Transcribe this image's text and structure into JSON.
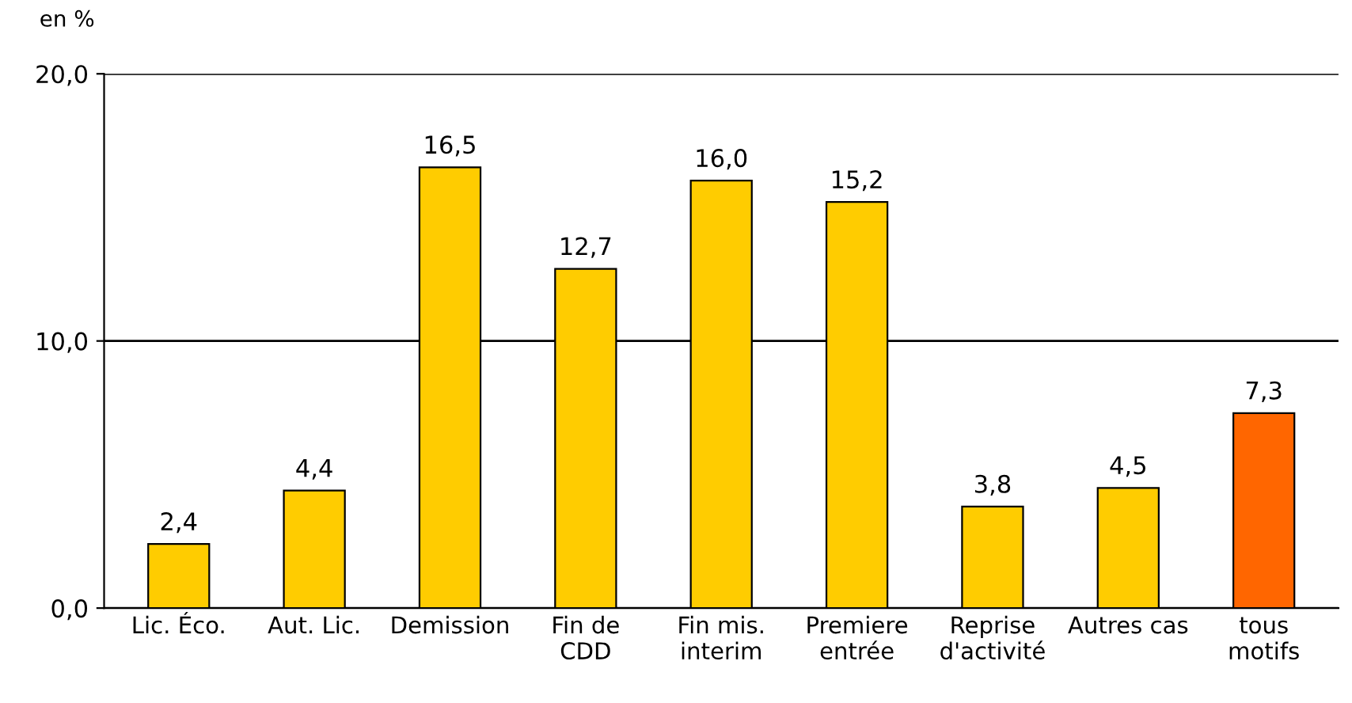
{
  "chart_data": {
    "type": "bar",
    "ylabel": "en %",
    "categories": [
      "Lic. Éco.",
      "Aut. Lic.",
      "Demission",
      "Fin de\nCDD",
      "Fin mis.\ninterim",
      "Premiere\nentrée",
      "Reprise\nd'activité",
      "Autres cas",
      "tous\nmotifs"
    ],
    "values": [
      2.4,
      4.4,
      16.5,
      12.7,
      16.0,
      15.2,
      3.8,
      4.5,
      7.3
    ],
    "colors": [
      "#ffcc00",
      "#ffcc00",
      "#ffcc00",
      "#ffcc00",
      "#ffcc00",
      "#ffcc00",
      "#ffcc00",
      "#ffcc00",
      "#ff6600"
    ],
    "value_labels": [
      "2,4",
      "4,4",
      "16,5",
      "12,7",
      "16,0",
      "15,2",
      "3,8",
      "4,5",
      "7,3"
    ],
    "ylim": [
      0,
      20
    ],
    "yticks": [
      {
        "value": 0,
        "label": "0,0"
      },
      {
        "value": 10,
        "label": "10,0"
      },
      {
        "value": 20,
        "label": "20,0"
      }
    ],
    "grid": "y",
    "legend": false
  }
}
